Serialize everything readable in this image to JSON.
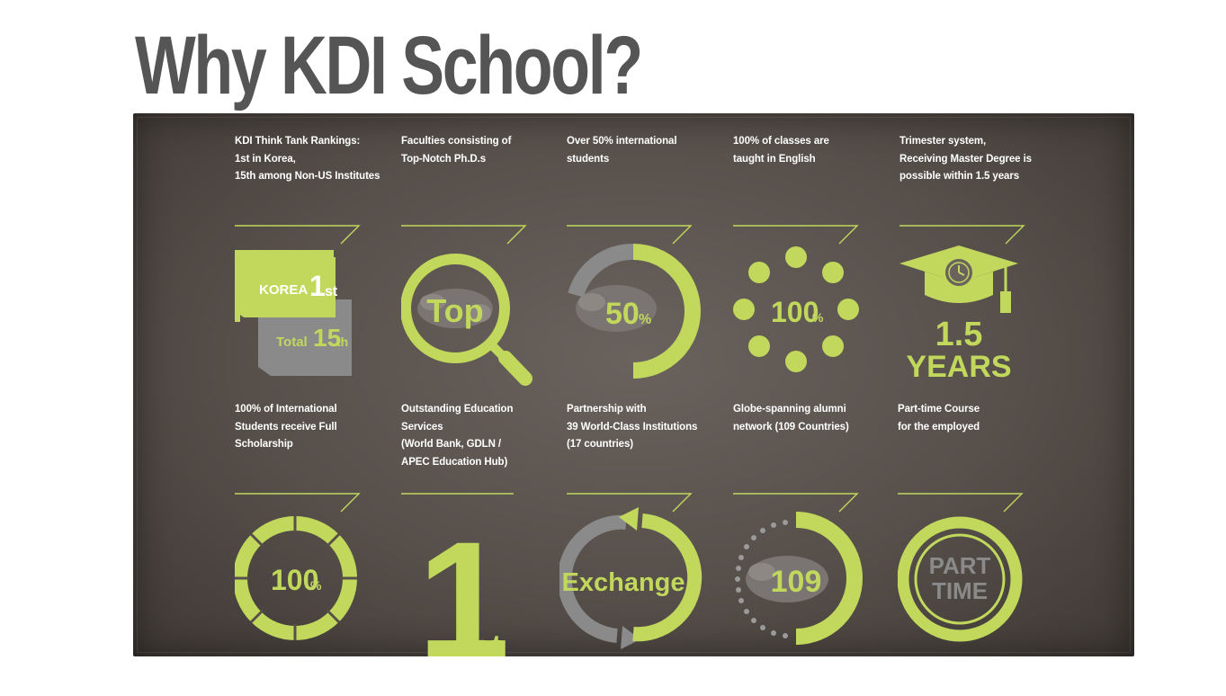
{
  "title": "Why KDI School?",
  "colors": {
    "accent": "#c1d85c",
    "gray": "#8a8a8a",
    "board": "#564f4a",
    "title": "#555555"
  },
  "items": [
    {
      "lines": [
        "KDI Think Tank Rankings:",
        "1st in Korea,",
        "15th among Non-US Institutes"
      ],
      "icon_name": "ranking-flags-icon",
      "icon_text": [
        "KOREA",
        "1",
        "st",
        "Total",
        "15",
        "th"
      ]
    },
    {
      "lines": [
        "Faculties consisting of",
        "Top-Notch Ph.D.s"
      ],
      "icon_name": "magnifier-globe-icon",
      "icon_text": [
        "Top"
      ]
    },
    {
      "lines": [
        "Over 50% international",
        "students"
      ],
      "icon_name": "half-ring-globe-icon",
      "icon_text": [
        "50",
        "%"
      ]
    },
    {
      "lines": [
        "100% of classes are",
        "taught in English"
      ],
      "icon_name": "dot-circle-icon",
      "icon_text": [
        "100",
        "%"
      ]
    },
    {
      "lines": [
        "Trimester system,",
        "Receiving Master Degree is",
        "possible within 1.5 years"
      ],
      "icon_name": "graduation-cap-clock-icon",
      "icon_text": [
        "1.5",
        "YEARS"
      ]
    },
    {
      "lines": [
        "100% of International",
        "Students receive Full",
        "Scholarship"
      ],
      "icon_name": "segmented-ring-icon",
      "icon_text": [
        "100",
        "%"
      ]
    },
    {
      "lines": [
        "Outstanding Education",
        "Services",
        "(World Bank, GDLN /",
        "APEC Education Hub)"
      ],
      "icon_name": "big-first-icon",
      "icon_text": [
        "1",
        "st"
      ]
    },
    {
      "lines": [
        "Partnership with",
        "39 World-Class Institutions",
        "(17 countries)"
      ],
      "icon_name": "exchange-arrows-icon",
      "icon_text": [
        "Exchange"
      ]
    },
    {
      "lines": [
        "Globe-spanning alumni",
        "network (109 Countries)"
      ],
      "icon_name": "alumni-globe-icon",
      "icon_text": [
        "109"
      ]
    },
    {
      "lines": [
        "Part-time Course",
        "for the employed"
      ],
      "icon_name": "part-time-clock-icon",
      "icon_text": [
        "PART",
        "TIME"
      ]
    }
  ]
}
